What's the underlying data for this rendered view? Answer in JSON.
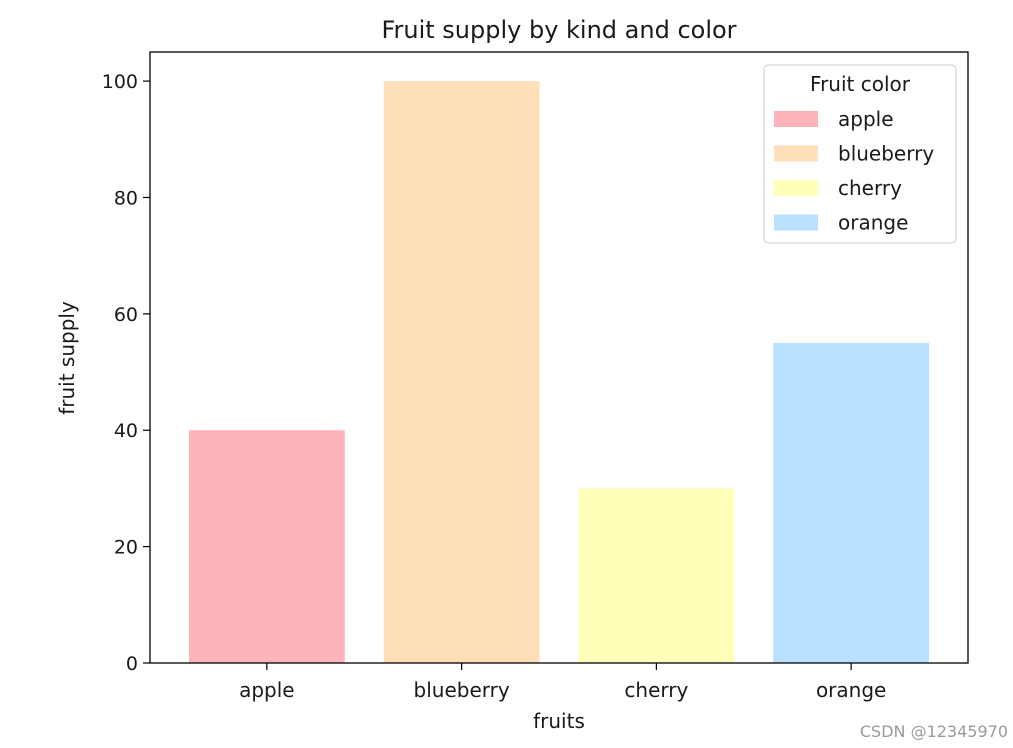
{
  "chart_data": {
    "type": "bar",
    "title": "Fruit supply by kind and color",
    "xlabel": "fruits",
    "ylabel": "fruit supply",
    "categories": [
      "apple",
      "blueberry",
      "cherry",
      "orange"
    ],
    "values": [
      40,
      100,
      30,
      55
    ],
    "colors": [
      "#ffb3ba",
      "#ffdfba",
      "#ffffba",
      "#bae1ff"
    ],
    "ylim": [
      0,
      105
    ],
    "yticks": [
      0,
      20,
      40,
      60,
      80,
      100
    ],
    "grid": false,
    "legend": {
      "title": "Fruit color",
      "placement": "top-right",
      "entries": [
        "apple",
        "blueberry",
        "cherry",
        "orange"
      ]
    }
  },
  "watermark": "CSDN @12345970"
}
